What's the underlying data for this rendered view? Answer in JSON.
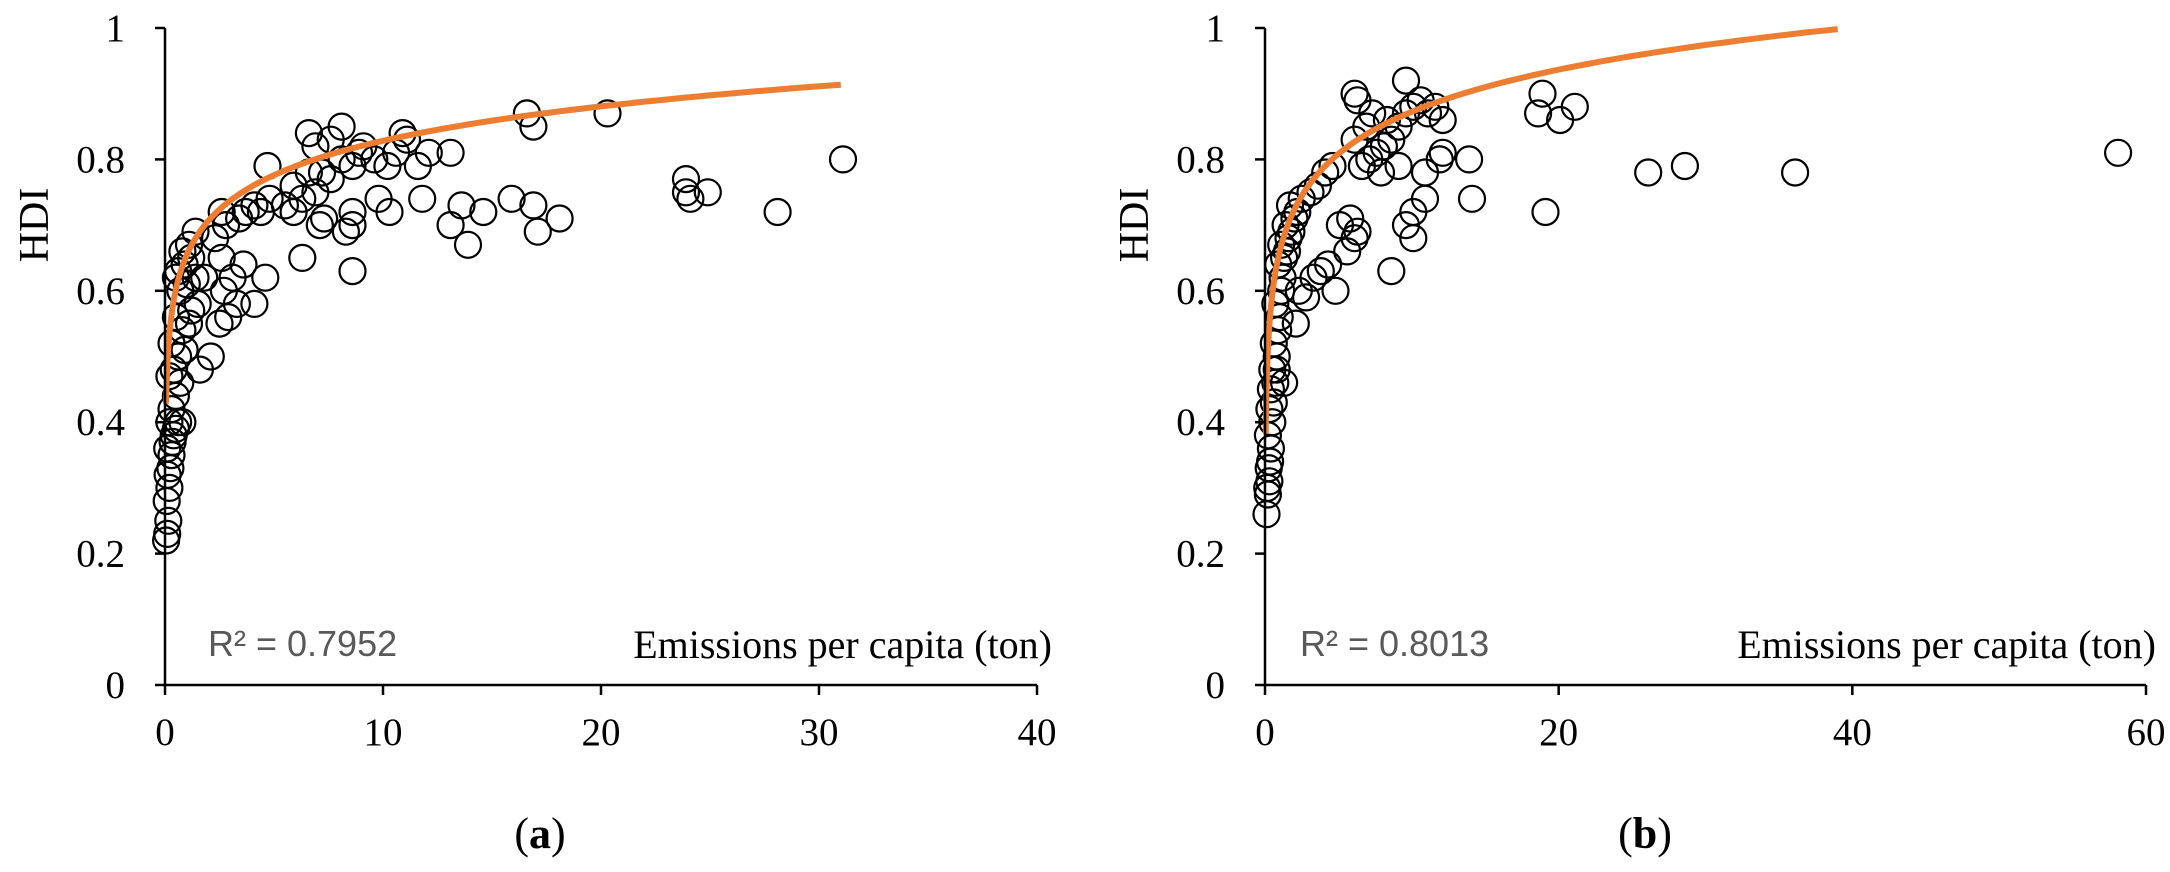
{
  "colors": {
    "fit": "#ED7D31",
    "marker": "#000000",
    "axis": "#000000",
    "r2": "#595959"
  },
  "chart_data": [
    {
      "type": "scatter",
      "panel_label": "a",
      "ylabel": "HDI",
      "xlabel": "Emissions per capita (ton)",
      "r2_text": "R² = 0.7952",
      "xlim": [
        0,
        40
      ],
      "ylim": [
        0,
        1
      ],
      "x_ticks": [
        "0",
        "10",
        "20",
        "30",
        "40"
      ],
      "y_ticks": [
        "0",
        "0.2",
        "0.4",
        "0.6",
        "0.8",
        "1"
      ],
      "fit": {
        "type": "logarithmic",
        "a": 0.6545,
        "b": 0.0755,
        "x_range": [
          0.05,
          31
        ]
      },
      "points": [
        [
          0.05,
          0.22
        ],
        [
          0.1,
          0.23
        ],
        [
          0.15,
          0.25
        ],
        [
          0.08,
          0.28
        ],
        [
          0.2,
          0.3
        ],
        [
          0.12,
          0.32
        ],
        [
          0.25,
          0.33
        ],
        [
          0.3,
          0.35
        ],
        [
          0.1,
          0.36
        ],
        [
          0.35,
          0.37
        ],
        [
          0.4,
          0.38
        ],
        [
          0.5,
          0.39
        ],
        [
          0.2,
          0.4
        ],
        [
          0.6,
          0.4
        ],
        [
          0.8,
          0.4
        ],
        [
          0.3,
          0.42
        ],
        [
          0.5,
          0.44
        ],
        [
          0.7,
          0.46
        ],
        [
          0.2,
          0.47
        ],
        [
          0.4,
          0.48
        ],
        [
          0.6,
          0.5
        ],
        [
          0.9,
          0.51
        ],
        [
          0.3,
          0.52
        ],
        [
          0.8,
          0.54
        ],
        [
          1.1,
          0.55
        ],
        [
          0.5,
          0.56
        ],
        [
          1.2,
          0.57
        ],
        [
          1.5,
          0.58
        ],
        [
          0.7,
          0.6
        ],
        [
          1.0,
          0.61
        ],
        [
          1.4,
          0.62
        ],
        [
          0.6,
          0.63
        ],
        [
          0.9,
          0.64
        ],
        [
          1.2,
          0.65
        ],
        [
          0.8,
          0.66
        ],
        [
          1.1,
          0.67
        ],
        [
          1.4,
          0.69
        ],
        [
          1.6,
          0.48
        ],
        [
          2.1,
          0.5
        ],
        [
          2.5,
          0.55
        ],
        [
          2.9,
          0.56
        ],
        [
          3.3,
          0.58
        ],
        [
          2.7,
          0.6
        ],
        [
          3.1,
          0.62
        ],
        [
          4.1,
          0.58
        ],
        [
          4.6,
          0.62
        ],
        [
          3.6,
          0.64
        ],
        [
          2.6,
          0.65
        ],
        [
          2.3,
          0.68
        ],
        [
          2.8,
          0.7
        ],
        [
          3.4,
          0.71
        ],
        [
          4.1,
          0.73
        ],
        [
          4.4,
          0.72
        ],
        [
          4.8,
          0.74
        ],
        [
          5.5,
          0.73
        ],
        [
          5.9,
          0.72
        ],
        [
          6.3,
          0.74
        ],
        [
          6.9,
          0.75
        ],
        [
          7.3,
          0.71
        ],
        [
          7.1,
          0.7
        ],
        [
          5.9,
          0.76
        ],
        [
          6.6,
          0.78
        ],
        [
          7.2,
          0.78
        ],
        [
          7.6,
          0.77
        ],
        [
          8.1,
          0.8
        ],
        [
          8.6,
          0.79
        ],
        [
          8.9,
          0.81
        ],
        [
          6.9,
          0.82
        ],
        [
          6.6,
          0.84
        ],
        [
          7.6,
          0.83
        ],
        [
          8.1,
          0.85
        ],
        [
          4.7,
          0.79
        ],
        [
          9.1,
          0.82
        ],
        [
          9.6,
          0.8
        ],
        [
          10.2,
          0.79
        ],
        [
          10.6,
          0.81
        ],
        [
          11.1,
          0.83
        ],
        [
          10.9,
          0.84
        ],
        [
          11.6,
          0.79
        ],
        [
          12.1,
          0.81
        ],
        [
          13.1,
          0.81
        ],
        [
          11.8,
          0.74
        ],
        [
          9.8,
          0.74
        ],
        [
          10.3,
          0.72
        ],
        [
          8.6,
          0.72
        ],
        [
          8.6,
          0.7
        ],
        [
          8.3,
          0.69
        ],
        [
          6.3,
          0.65
        ],
        [
          8.6,
          0.63
        ],
        [
          13.1,
          0.7
        ],
        [
          13.9,
          0.67
        ],
        [
          13.6,
          0.73
        ],
        [
          14.6,
          0.72
        ],
        [
          15.9,
          0.74
        ],
        [
          16.9,
          0.73
        ],
        [
          17.1,
          0.69
        ],
        [
          18.1,
          0.71
        ],
        [
          16.6,
          0.87
        ],
        [
          16.9,
          0.85
        ],
        [
          20.3,
          0.87
        ],
        [
          23.9,
          0.77
        ],
        [
          24.1,
          0.74
        ],
        [
          23.9,
          0.75
        ],
        [
          24.9,
          0.75
        ],
        [
          28.1,
          0.72
        ],
        [
          31.1,
          0.8
        ],
        [
          2.6,
          0.72
        ],
        [
          3.7,
          0.72
        ],
        [
          0.5,
          0.62
        ],
        [
          1.8,
          0.62
        ]
      ]
    },
    {
      "type": "scatter",
      "panel_label": "b",
      "ylabel": "HDI",
      "xlabel": "Emissions per capita (ton)",
      "r2_text": "R² = 0.8013",
      "xlim": [
        0,
        60
      ],
      "ylim": [
        0,
        1
      ],
      "x_ticks": [
        "0",
        "20",
        "40",
        "60"
      ],
      "y_ticks": [
        "0",
        "0.2",
        "0.4",
        "0.6",
        "0.8",
        "1"
      ],
      "fit": {
        "type": "logarithmic",
        "a": 0.6595,
        "b": 0.0925,
        "x_range": [
          0.05,
          39
        ]
      },
      "points": [
        [
          0.1,
          0.26
        ],
        [
          0.2,
          0.29
        ],
        [
          0.15,
          0.3
        ],
        [
          0.3,
          0.31
        ],
        [
          0.25,
          0.33
        ],
        [
          0.35,
          0.34
        ],
        [
          0.4,
          0.36
        ],
        [
          0.2,
          0.38
        ],
        [
          0.5,
          0.4
        ],
        [
          0.3,
          0.42
        ],
        [
          0.6,
          0.43
        ],
        [
          0.4,
          0.45
        ],
        [
          0.7,
          0.46
        ],
        [
          0.5,
          0.48
        ],
        [
          0.8,
          0.5
        ],
        [
          0.6,
          0.52
        ],
        [
          0.9,
          0.54
        ],
        [
          1.0,
          0.56
        ],
        [
          0.7,
          0.58
        ],
        [
          1.1,
          0.6
        ],
        [
          1.2,
          0.62
        ],
        [
          0.9,
          0.64
        ],
        [
          1.3,
          0.65
        ],
        [
          1.5,
          0.66
        ],
        [
          1.1,
          0.67
        ],
        [
          1.6,
          0.68
        ],
        [
          1.8,
          0.69
        ],
        [
          1.4,
          0.7
        ],
        [
          2.0,
          0.71
        ],
        [
          2.2,
          0.72
        ],
        [
          1.7,
          0.73
        ],
        [
          2.5,
          0.74
        ],
        [
          2.8,
          0.59
        ],
        [
          2.3,
          0.6
        ],
        [
          3.3,
          0.62
        ],
        [
          3.8,
          0.63
        ],
        [
          4.3,
          0.64
        ],
        [
          4.8,
          0.6
        ],
        [
          5.6,
          0.66
        ],
        [
          6.1,
          0.68
        ],
        [
          5.1,
          0.7
        ],
        [
          5.8,
          0.71
        ],
        [
          6.3,
          0.69
        ],
        [
          3.1,
          0.75
        ],
        [
          3.6,
          0.76
        ],
        [
          4.1,
          0.78
        ],
        [
          4.6,
          0.79
        ],
        [
          6.6,
          0.79
        ],
        [
          7.1,
          0.8
        ],
        [
          7.6,
          0.81
        ],
        [
          8.1,
          0.82
        ],
        [
          8.6,
          0.83
        ],
        [
          6.1,
          0.83
        ],
        [
          6.9,
          0.85
        ],
        [
          7.3,
          0.87
        ],
        [
          8.3,
          0.86
        ],
        [
          9.1,
          0.85
        ],
        [
          9.6,
          0.87
        ],
        [
          10.1,
          0.88
        ],
        [
          10.6,
          0.89
        ],
        [
          11.1,
          0.87
        ],
        [
          11.6,
          0.88
        ],
        [
          12.1,
          0.86
        ],
        [
          6.1,
          0.9
        ],
        [
          6.3,
          0.89
        ],
        [
          9.6,
          0.92
        ],
        [
          7.9,
          0.78
        ],
        [
          9.1,
          0.79
        ],
        [
          10.9,
          0.78
        ],
        [
          11.9,
          0.8
        ],
        [
          13.9,
          0.8
        ],
        [
          9.6,
          0.7
        ],
        [
          10.1,
          0.72
        ],
        [
          10.9,
          0.74
        ],
        [
          14.1,
          0.74
        ],
        [
          8.6,
          0.63
        ],
        [
          10.1,
          0.68
        ],
        [
          12.1,
          0.81
        ],
        [
          18.9,
          0.9
        ],
        [
          18.6,
          0.87
        ],
        [
          20.1,
          0.86
        ],
        [
          21.1,
          0.88
        ],
        [
          19.1,
          0.72
        ],
        [
          26.1,
          0.78
        ],
        [
          28.6,
          0.79
        ],
        [
          36.1,
          0.78
        ],
        [
          58.1,
          0.81
        ],
        [
          0.8,
          0.48
        ],
        [
          1.3,
          0.46
        ],
        [
          2.1,
          0.55
        ]
      ]
    }
  ]
}
